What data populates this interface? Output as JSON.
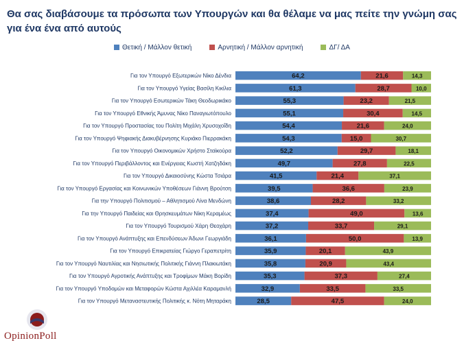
{
  "chart_data": {
    "type": "bar",
    "stacked": true,
    "orientation": "horizontal",
    "title": "Θα σας διαβάσουμε τα πρόσωπα των Υπουργών και θα θέλαμε να μας πείτε την γνώμη σας για ένα ένα από αυτούς",
    "legend_position": "top",
    "categories": [
      "Για τον Υπουργό Εξωτερικών Νίκο Δένδια",
      "Για τον Υπουργό Υγείας Βασίλη Κικίλια",
      "Για τον Υπουργό Εσωτερικών Τάκη Θεοδωρικάκο",
      "Για τον Υπουργό Εθνικής Άμυνας Νίκο Παναγιωτόπουλο",
      "Για τον Υπουργό Προστασίας του Πολίτη Μιχάλη Χρυσοχοΐδη",
      "Για τον Υπουργό Ψηφιακής Διακυβέρνησης Κυριάκο Πιερρακάκη",
      "Για τον Υπουργό Οικονομικών Χρήστο Σταϊκούρα",
      "Για τον Υπουργό Περιβάλλοντος και Ενέργειας Κωστή Χατζηδάκη",
      "Για τον Υπουργό Δικαιοσύνης Κώστα Τσιάρα",
      "Για τον Υπουργό Εργασίας και Κοινωνικών Υποθέσεων Γιάννη Βρούτση",
      "Για την Υπουργό Πολιτισμού – Αθλητισμού Λίνα Μενδώνη",
      "Για την Υπουργό Παιδείας και Θρησκευμάτων Νίκη Κεραμέως",
      "Για τον Υπουργό Τουρισμού Χάρη Θεοχάρη",
      "Για τον Υπουργό Ανάπτυξης και Επενδύσεων Άδωνι Γεωργιάδη",
      "Για τον Υπουργό Επικρατείας Γιώργο Γεραπετρίτη",
      "Για τον Υπουργό Ναυτιλίας και Νησιωτικής Πολιτικής Γιάννη Πλακιωτάκη",
      "Για τον Υπουργό Αγροτικής Ανάπτυξης και Τροφίμων Μάκη Βορίδη",
      "Για τον Υπουργό Υποδομών και Μεταφορών Κώστα Αχιλλέα Καραμανλή",
      "Για τον Υπουργό Μεταναστευτικής Πολιτικής κ. Νότη Μηταράκη"
    ],
    "series": [
      {
        "name": "Θετική / Μάλλον θετική",
        "color": "#4f81bd",
        "values": [
          64.2,
          61.3,
          55.3,
          55.1,
          54.4,
          54.3,
          52.2,
          49.7,
          41.5,
          39.5,
          38.6,
          37.4,
          37.2,
          36.1,
          35.9,
          35.8,
          35.3,
          32.9,
          28.5
        ]
      },
      {
        "name": "Αρνητική / Μάλλον αρνητική",
        "color": "#c0504d",
        "values": [
          21.6,
          28.7,
          23.2,
          30.4,
          21.6,
          15.0,
          29.7,
          27.8,
          21.4,
          36.6,
          28.2,
          49.0,
          33.7,
          50.0,
          20.1,
          20.9,
          37.3,
          33.5,
          47.5
        ]
      },
      {
        "name": "ΔΓ/ ΔΑ",
        "color": "#9bbb59",
        "values": [
          14.3,
          10.0,
          21.5,
          14.5,
          24.0,
          30.7,
          18.1,
          22.5,
          37.1,
          23.9,
          33.2,
          13.6,
          29.1,
          13.9,
          43.9,
          43.4,
          27.4,
          33.5,
          24.0
        ]
      }
    ],
    "labels": {
      "positive": [
        "64,2",
        "61,3",
        "55,3",
        "55,1",
        "54,4",
        "54,3",
        "52,2",
        "49,7",
        "41,5",
        "39,5",
        "38,6",
        "37,4",
        "37,2",
        "36,1",
        "35,9",
        "35,8",
        "35,3",
        "32,9",
        "28,5"
      ],
      "negative": [
        "21,6",
        "28,7",
        "23,2",
        "30,4",
        "21,6",
        "15,0",
        "29,7",
        "27,8",
        "21,4",
        "36,6",
        "28,2",
        "49,0",
        "33,7",
        "50,0",
        "20,1",
        "20,9",
        "37,3",
        "33,5",
        "47,5"
      ],
      "dk": [
        "14,3",
        "10,0",
        "21,5",
        "14,5",
        "24,0",
        "30,7",
        "18,1",
        "22,5",
        "37,1",
        "23,9",
        "33,2",
        "13,6",
        "29,1",
        "13,9",
        "43,9",
        "43,4",
        "27,4",
        "33,5",
        "24,0"
      ]
    },
    "xlim": [
      0,
      100
    ]
  },
  "logo": {
    "text": "OpinionPoll"
  }
}
